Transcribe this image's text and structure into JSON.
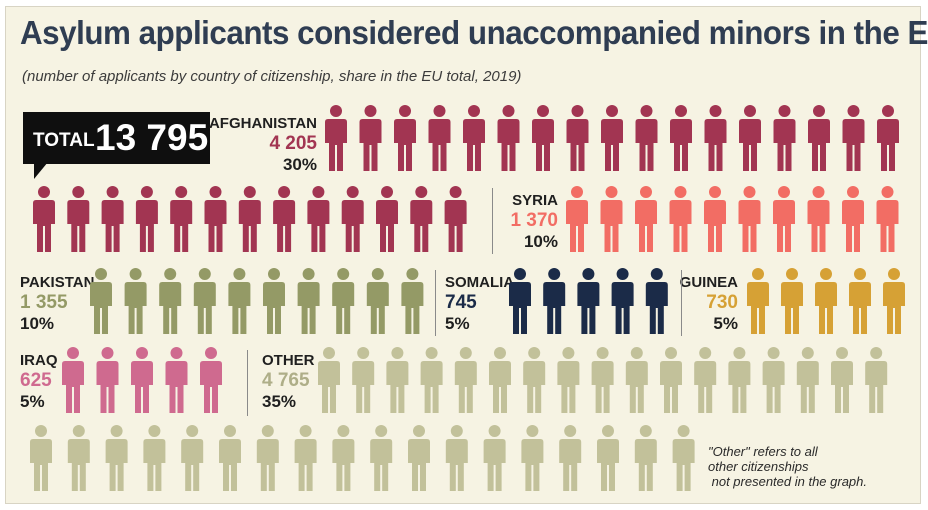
{
  "title": "Asylum applicants considered unaccompanied minors in the EU",
  "subtitle": "(number of applicants by country of citizenship, share in the EU total, 2019)",
  "total": {
    "label": "TOTAL",
    "value": "13 795"
  },
  "note": "\"Other\" refers to all\nother citizenships\n not presented in the graph.",
  "chart_data": {
    "type": "pictogram",
    "total": 13795,
    "categories": [
      {
        "name": "AFGHANISTAN",
        "value": 4205,
        "value_label": "4 205",
        "share": "30%",
        "icons": 30,
        "color": "#a23552"
      },
      {
        "name": "SYRIA",
        "value": 1370,
        "value_label": "1 370",
        "share": "10%",
        "icons": 10,
        "color": "#f26d64"
      },
      {
        "name": "PAKISTAN",
        "value": 1355,
        "value_label": "1 355",
        "share": "10%",
        "icons": 10,
        "color": "#949a66"
      },
      {
        "name": "SOMALIA",
        "value": 745,
        "value_label": "745",
        "share": "5%",
        "icons": 5,
        "color": "#1b2b48"
      },
      {
        "name": "GUINEA",
        "value": 730,
        "value_label": "730",
        "share": "5%",
        "icons": 5,
        "color": "#d6a135"
      },
      {
        "name": "IRAQ",
        "value": 625,
        "value_label": "625",
        "share": "5%",
        "icons": 5,
        "color": "#cf6a8f"
      },
      {
        "name": "OTHER",
        "value": 4765,
        "value_label": "4 765",
        "share": "35%",
        "icons": 35,
        "color": "#c2c19a"
      }
    ]
  }
}
